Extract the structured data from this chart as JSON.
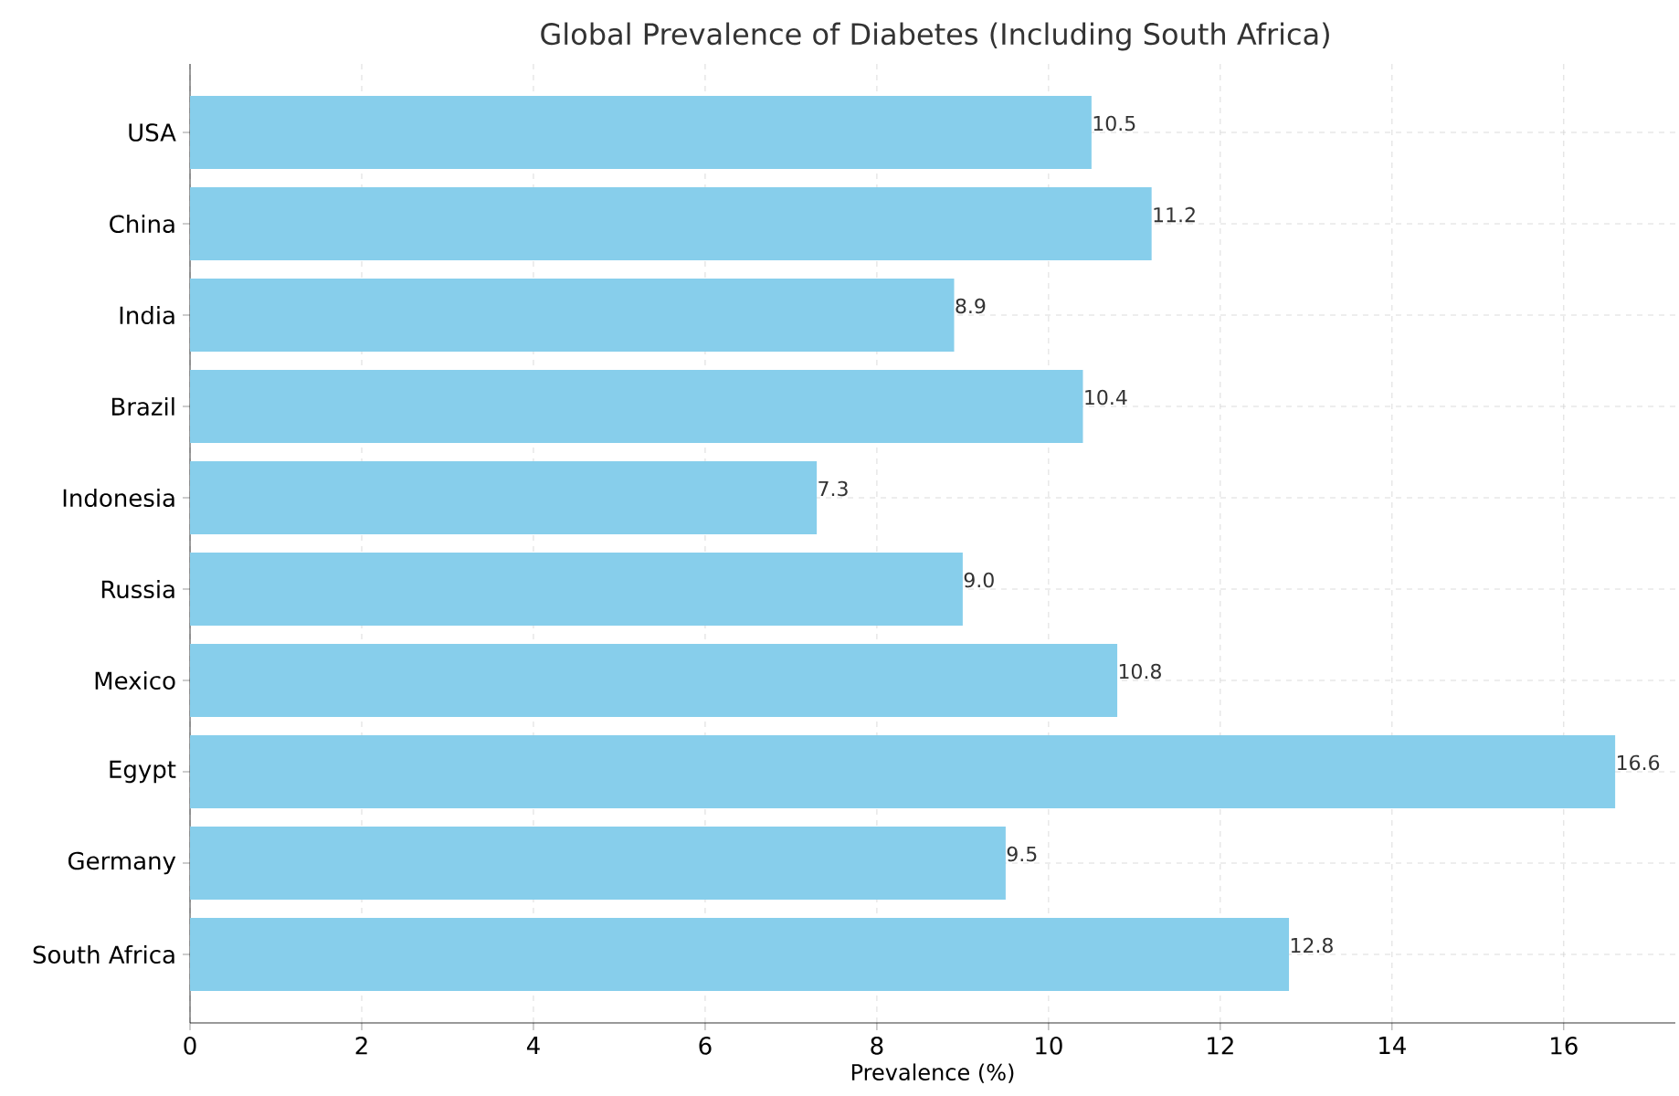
{
  "chart_data": {
    "type": "bar",
    "orientation": "horizontal",
    "title": "Global Prevalence of Diabetes (Including South Africa)",
    "xlabel": "Prevalence (%)",
    "categories": [
      "USA",
      "China",
      "India",
      "Brazil",
      "Indonesia",
      "Russia",
      "Mexico",
      "Egypt",
      "Germany",
      "South Africa"
    ],
    "values": [
      10.5,
      11.2,
      8.9,
      10.4,
      7.3,
      9.0,
      10.8,
      16.6,
      9.5,
      12.8
    ],
    "value_labels": [
      "10.5",
      "11.2",
      "8.9",
      "10.4",
      "7.3",
      "9.0",
      "10.8",
      "16.6",
      "9.5",
      "12.8"
    ],
    "color": "#87ceeb",
    "xlim": [
      0,
      17.3
    ],
    "xticks": [
      0,
      2,
      4,
      6,
      8,
      10,
      12,
      14,
      16
    ],
    "grid": true
  }
}
